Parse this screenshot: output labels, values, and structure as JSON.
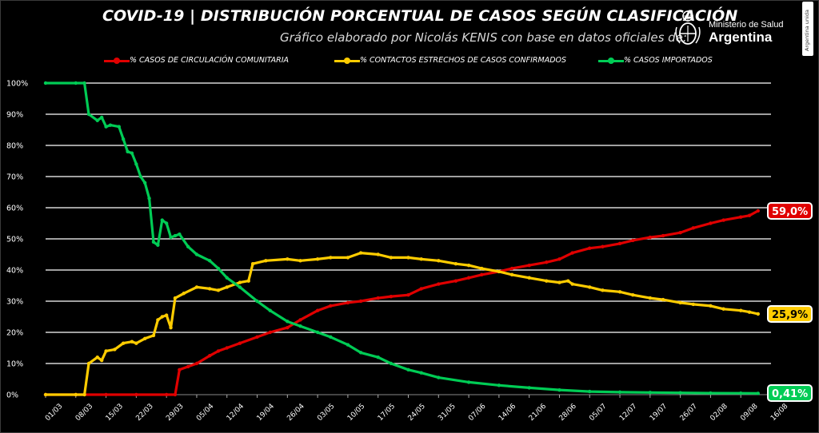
{
  "header": {
    "title": "COVID-19  |  DISTRIBUCIÓN PORCENTUAL DE CASOS SEGÚN CLASIFICACIÓN",
    "subtitle": "Gráfico elaborado por Nicolás KENIS con base en datos oficiales de:",
    "logo_ministry": "Ministerio de Salud",
    "logo_country": "Argentina",
    "side_badge": "Argentina unida"
  },
  "colors": {
    "community": "#e00000",
    "contacts": "#ffcc00",
    "imported": "#00cc55",
    "grid": "#ffffff",
    "background": "#000000"
  },
  "chart_data": {
    "type": "line",
    "title": "COVID-19  |  DISTRIBUCIÓN PORCENTUAL DE CASOS SEGÚN CLASIFICACIÓN",
    "xlabel": "",
    "ylabel": "",
    "ylim": [
      0,
      100
    ],
    "y_ticks": [
      "0%",
      "10%",
      "20%",
      "30%",
      "40%",
      "50%",
      "60%",
      "70%",
      "80%",
      "90%",
      "100%"
    ],
    "x_ticks": [
      "01/03",
      "08/03",
      "15/03",
      "22/03",
      "29/03",
      "05/04",
      "12/04",
      "19/04",
      "26/04",
      "03/05",
      "10/05",
      "17/05",
      "24/05",
      "31/05",
      "07/06",
      "14/06",
      "21/06",
      "28/06",
      "05/07",
      "12/07",
      "19/07",
      "26/07",
      "02/08",
      "09/08",
      "16/08"
    ],
    "grid": true,
    "legend_position": "top",
    "series": [
      {
        "name": "% CASOS DE CIRCULACIÓN COMUNITARIA",
        "color": "#e00000",
        "points": [
          [
            "01/03",
            0
          ],
          [
            "08/03",
            0
          ],
          [
            "15/03",
            0
          ],
          [
            "22/03",
            0
          ],
          [
            "29/03",
            0
          ],
          [
            "31/03",
            0
          ],
          [
            "01/04",
            8
          ],
          [
            "03/04",
            9
          ],
          [
            "05/04",
            10
          ],
          [
            "08/04",
            12.5
          ],
          [
            "10/04",
            14
          ],
          [
            "12/04",
            15
          ],
          [
            "15/04",
            16.5
          ],
          [
            "19/04",
            18.5
          ],
          [
            "22/04",
            20
          ],
          [
            "26/04",
            21.5
          ],
          [
            "29/04",
            24
          ],
          [
            "03/05",
            27
          ],
          [
            "06/05",
            28.5
          ],
          [
            "10/05",
            29.5
          ],
          [
            "13/05",
            30
          ],
          [
            "17/05",
            31
          ],
          [
            "20/05",
            31.5
          ],
          [
            "24/05",
            32
          ],
          [
            "27/05",
            34
          ],
          [
            "31/05",
            35.5
          ],
          [
            "04/06",
            36.5
          ],
          [
            "07/06",
            37.5
          ],
          [
            "10/06",
            38.5
          ],
          [
            "14/06",
            39.5
          ],
          [
            "17/06",
            40.5
          ],
          [
            "21/06",
            41.5
          ],
          [
            "25/06",
            42.5
          ],
          [
            "28/06",
            43.5
          ],
          [
            "01/07",
            45.5
          ],
          [
            "05/07",
            47
          ],
          [
            "08/07",
            47.5
          ],
          [
            "12/07",
            48.5
          ],
          [
            "15/07",
            49.5
          ],
          [
            "19/07",
            50.5
          ],
          [
            "22/07",
            51
          ],
          [
            "26/07",
            52
          ],
          [
            "29/07",
            53.5
          ],
          [
            "02/08",
            55
          ],
          [
            "05/08",
            56
          ],
          [
            "09/08",
            57
          ],
          [
            "11/08",
            57.5
          ],
          [
            "13/08",
            59
          ]
        ],
        "end_label": "59,0%"
      },
      {
        "name": "% CONTACTOS ESTRECHOS DE CASOS CONFIRMADOS",
        "color": "#ffcc00",
        "points": [
          [
            "01/03",
            0
          ],
          [
            "08/03",
            0
          ],
          [
            "10/03",
            0
          ],
          [
            "11/03",
            10
          ],
          [
            "13/03",
            12
          ],
          [
            "14/03",
            11
          ],
          [
            "15/03",
            14
          ],
          [
            "17/03",
            14.5
          ],
          [
            "19/03",
            16.5
          ],
          [
            "21/03",
            17
          ],
          [
            "22/03",
            16.5
          ],
          [
            "24/03",
            18
          ],
          [
            "26/03",
            19
          ],
          [
            "27/03",
            24
          ],
          [
            "28/03",
            25
          ],
          [
            "29/03",
            25.5
          ],
          [
            "30/03",
            21.5
          ],
          [
            "31/03",
            31
          ],
          [
            "02/04",
            32.5
          ],
          [
            "05/04",
            34.5
          ],
          [
            "08/04",
            34
          ],
          [
            "10/04",
            33.5
          ],
          [
            "12/04",
            34.5
          ],
          [
            "15/04",
            36
          ],
          [
            "17/04",
            36.5
          ],
          [
            "18/04",
            42
          ],
          [
            "21/04",
            43
          ],
          [
            "26/04",
            43.5
          ],
          [
            "29/04",
            43
          ],
          [
            "03/05",
            43.5
          ],
          [
            "06/05",
            44
          ],
          [
            "10/05",
            44
          ],
          [
            "13/05",
            45.5
          ],
          [
            "17/05",
            45
          ],
          [
            "20/05",
            44
          ],
          [
            "24/05",
            44
          ],
          [
            "27/05",
            43.5
          ],
          [
            "31/05",
            43
          ],
          [
            "04/06",
            42
          ],
          [
            "07/06",
            41.5
          ],
          [
            "10/06",
            40.5
          ],
          [
            "14/06",
            39.5
          ],
          [
            "17/06",
            38.5
          ],
          [
            "21/06",
            37.5
          ],
          [
            "25/06",
            36.5
          ],
          [
            "28/06",
            36
          ],
          [
            "30/06",
            36.5
          ],
          [
            "01/07",
            35.5
          ],
          [
            "05/07",
            34.5
          ],
          [
            "08/07",
            33.5
          ],
          [
            "12/07",
            33
          ],
          [
            "15/07",
            32
          ],
          [
            "19/07",
            31
          ],
          [
            "22/07",
            30.5
          ],
          [
            "26/07",
            29.5
          ],
          [
            "29/07",
            29
          ],
          [
            "02/08",
            28.5
          ],
          [
            "05/08",
            27.5
          ],
          [
            "09/08",
            27
          ],
          [
            "11/08",
            26.5
          ],
          [
            "13/08",
            25.9
          ]
        ],
        "end_label": "25,9%"
      },
      {
        "name": "% CASOS IMPORTADOS",
        "color": "#00cc55",
        "points": [
          [
            "01/03",
            100
          ],
          [
            "08/03",
            100
          ],
          [
            "10/03",
            100
          ],
          [
            "11/03",
            90
          ],
          [
            "13/03",
            88
          ],
          [
            "14/03",
            89
          ],
          [
            "15/03",
            86
          ],
          [
            "16/03",
            86.5
          ],
          [
            "18/03",
            86
          ],
          [
            "19/03",
            82
          ],
          [
            "20/03",
            78
          ],
          [
            "21/03",
            77.5
          ],
          [
            "22/03",
            74
          ],
          [
            "23/03",
            70
          ],
          [
            "24/03",
            68
          ],
          [
            "25/03",
            63
          ],
          [
            "26/03",
            49
          ],
          [
            "27/03",
            48
          ],
          [
            "28/03",
            56
          ],
          [
            "29/03",
            55
          ],
          [
            "30/03",
            50.5
          ],
          [
            "31/03",
            51
          ],
          [
            "01/04",
            51.5
          ],
          [
            "03/04",
            47.5
          ],
          [
            "05/04",
            45
          ],
          [
            "08/04",
            43
          ],
          [
            "10/04",
            40.5
          ],
          [
            "12/04",
            37.5
          ],
          [
            "15/04",
            34.5
          ],
          [
            "19/04",
            30
          ],
          [
            "22/04",
            27
          ],
          [
            "26/04",
            23.5
          ],
          [
            "29/04",
            22
          ],
          [
            "03/05",
            20
          ],
          [
            "06/05",
            18.5
          ],
          [
            "10/05",
            16
          ],
          [
            "13/05",
            13.5
          ],
          [
            "17/05",
            12
          ],
          [
            "20/05",
            10
          ],
          [
            "24/05",
            8
          ],
          [
            "27/05",
            7
          ],
          [
            "31/05",
            5.5
          ],
          [
            "07/06",
            4
          ],
          [
            "14/06",
            3
          ],
          [
            "21/06",
            2.2
          ],
          [
            "28/06",
            1.5
          ],
          [
            "05/07",
            1
          ],
          [
            "12/07",
            0.8
          ],
          [
            "19/07",
            0.7
          ],
          [
            "26/07",
            0.6
          ],
          [
            "02/08",
            0.5
          ],
          [
            "09/08",
            0.45
          ],
          [
            "13/08",
            0.41
          ]
        ],
        "end_label": "0,41%"
      }
    ]
  }
}
